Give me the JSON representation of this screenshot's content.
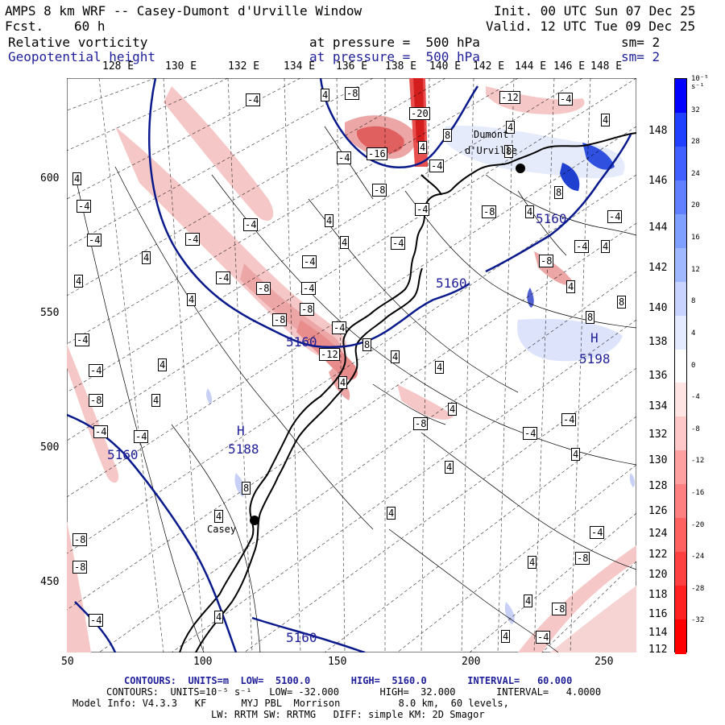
{
  "header": {
    "title": "AMPS 8 km WRF -- Casey-Dumont d'Urville Window",
    "fcst_label": "Fcst.",
    "fcst_value": "60 h",
    "init": "Init. 00 UTC Sun 07 Dec 25",
    "valid": "Valid. 12 UTC Tue 09 Dec 25"
  },
  "fields": [
    {
      "name": "Relative vorticity",
      "level": "at pressure =  500 hPa",
      "sm": "sm= 2",
      "color": "#000000"
    },
    {
      "name": "Geopotential height",
      "level": "at pressure =  500 hPa",
      "sm": "sm= 2",
      "color": "#1f1f99"
    }
  ],
  "map": {
    "lon_top_labels": [
      "128 E",
      "130 E",
      "132 E",
      "134 E",
      "136 E",
      "138 E",
      "140 E",
      "142 E",
      "144 E",
      "146 E",
      "148 E"
    ],
    "lat_right_labels": [
      "148 E",
      "146 E",
      "144 E",
      "142 E",
      "140 E",
      "138 E",
      "136 E",
      "134 E",
      "132 E",
      "130 E",
      "128 E",
      "126 E",
      "124 E",
      "122 E",
      "120 E",
      "118 E",
      "116 E",
      "114 E",
      "112 E"
    ],
    "x_axis": [
      "50",
      "100",
      "150",
      "200",
      "250"
    ],
    "y_axis": [
      "600",
      "550",
      "500",
      "450"
    ],
    "stations": [
      {
        "name": "Casey"
      },
      {
        "name": "Dumont"
      },
      {
        "name": "d'Urville"
      }
    ],
    "height_labels": [
      "5160",
      "5160",
      "5160",
      "5160",
      "5160",
      "5188",
      "5198",
      "H",
      "H"
    ],
    "vort_labels": [
      "-4",
      "-8",
      "-12",
      "-16",
      "-20",
      "4",
      "8"
    ]
  },
  "colorbar": {
    "unit_label": "10⁻⁵ s⁻¹",
    "labels": [
      "32",
      "28",
      "24",
      "20",
      "16",
      "12",
      "8",
      "4",
      "0",
      "-4",
      "-8",
      "-12",
      "-16",
      "-20",
      "-24",
      "-28",
      "-32"
    ],
    "colors": [
      "#0000ff",
      "#2040ff",
      "#4060ff",
      "#6080ff",
      "#80a0ff",
      "#a0b8ff",
      "#c8d4ff",
      "#e4eaff",
      "#ffffff",
      "#ffe4e4",
      "#ffc8c8",
      "#ffa0a0",
      "#ff8080",
      "#ff6060",
      "#ff4040",
      "#ff2020",
      "#ff0000"
    ]
  },
  "footer": {
    "line1": "CONTOURS:  UNITS=m  LOW=  5100.0       HIGH=  5160.0       INTERVAL=   60.000",
    "line2": "CONTOURS:  UNITS=10⁻⁵ s⁻¹   LOW= -32.000       HIGH=  32.000       INTERVAL=   4.0000",
    "line3": "Model Info: V4.3.3   KF      MYJ PBL  Morrison          8.0 km,  60 levels,",
    "line4": "LW: RRTM SW: RRTMG   DIFF: simple KM: 2D Smagor"
  }
}
